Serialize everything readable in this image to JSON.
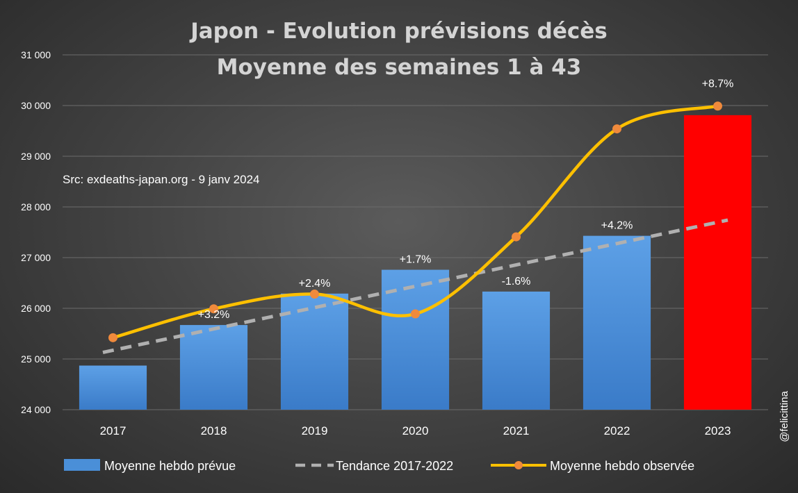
{
  "chart_data": {
    "type": "bar",
    "title": [
      "Japon - Evolution prévisions décès",
      "Moyenne des semaines 1 à 43"
    ],
    "xlabel": "",
    "ylabel": "",
    "categories": [
      "2017",
      "2018",
      "2019",
      "2020",
      "2021",
      "2022",
      "2023"
    ],
    "ylim": [
      24000,
      31000
    ],
    "yticks": [
      24000,
      25000,
      26000,
      27000,
      28000,
      29000,
      30000,
      31000
    ],
    "ytick_labels": [
      "24 000",
      "25 000",
      "26 000",
      "27 000",
      "28 000",
      "29 000",
      "30 000",
      "31 000"
    ],
    "grid": true,
    "legend_position": "bottom",
    "series": [
      {
        "name": "Moyenne hebdo prévue",
        "type": "bar",
        "values": [
          24870,
          25670,
          26290,
          26760,
          26330,
          27430,
          29810
        ],
        "colors": [
          "#4a8fd8",
          "#4a8fd8",
          "#4a8fd8",
          "#4a8fd8",
          "#4a8fd8",
          "#4a8fd8",
          "#ff0000"
        ]
      },
      {
        "name": "Tendance 2017-2022",
        "type": "line",
        "style": "dashed",
        "color": "#b0b0b0",
        "x": [
          2016.9,
          2023.1
        ],
        "values": [
          25130,
          27740
        ]
      },
      {
        "name": "Moyenne hebdo observée",
        "type": "line",
        "style": "smooth",
        "color": "#ffc000",
        "marker_color": "#f08a3c",
        "values": [
          25420,
          25990,
          26280,
          25890,
          27410,
          29540,
          29990
        ]
      }
    ],
    "data_labels": [
      "",
      "+3.2%",
      "+2.4%",
      "+1.7%",
      "-1.6%",
      "+4.2%",
      "+8.7%"
    ],
    "annotation": "Src: exdeaths-japan.org - 9 janv 2024",
    "credit": "@felicittina"
  }
}
